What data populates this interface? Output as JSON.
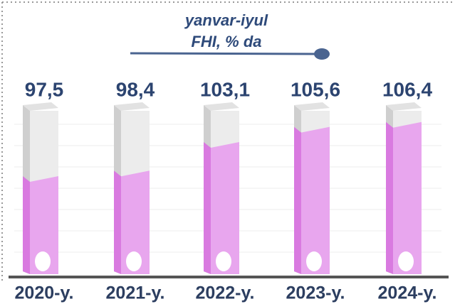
{
  "chart_data": {
    "type": "bar",
    "title": "yanvar-iyul",
    "subtitle": "FHI, % da",
    "categories": [
      "2020-y.",
      "2021-y.",
      "2022-y.",
      "2023-y.",
      "2024-y."
    ],
    "values": [
      97.5,
      98.4,
      103.1,
      105.6,
      106.4
    ],
    "value_labels": [
      "97,5",
      "98,4",
      "103,1",
      "105,6",
      "106,4"
    ],
    "color": "#e8a6ee"
  }
}
